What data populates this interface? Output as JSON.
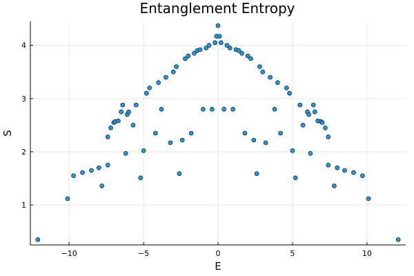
{
  "chart_data": {
    "type": "scatter",
    "title": "Entanglement Entropy",
    "xlabel": "E",
    "ylabel": "S",
    "xlim": [
      -12.6,
      12.6
    ],
    "ylim": [
      0.25,
      4.45
    ],
    "x_ticks": [
      -10,
      -5,
      0,
      5,
      10
    ],
    "x_tick_labels": [
      "−10",
      "−5",
      "0",
      "5",
      "10"
    ],
    "y_ticks": [
      1,
      2,
      3,
      4
    ],
    "y_tick_labels": [
      "1",
      "2",
      "3",
      "4"
    ],
    "grid": true,
    "legend": "none",
    "marker_color": "#1f9ae0",
    "marker_edge_color": "#000000",
    "series": [
      {
        "x": [
          -12.1,
          -10.1,
          -9.7,
          -9.1,
          -8.5,
          -8.0,
          -7.8,
          -7.4,
          -7.4,
          -7.2,
          -7.0,
          -6.9,
          -6.7,
          -6.5,
          -6.4,
          -6.2,
          -6.1,
          -6.0,
          -5.7,
          -5.5,
          -5.2,
          -5.0,
          -4.8,
          -4.6,
          -4.2,
          -4.0,
          -3.8,
          -3.5,
          -3.2,
          -3.0,
          -2.8,
          -2.6,
          -2.4,
          -2.2,
          -2.0,
          -1.8,
          -1.6,
          -1.4,
          -1.2,
          -1.0,
          -0.8,
          -0.6,
          -0.4,
          -0.2,
          -0.1,
          0.0,
          0.1,
          0.2,
          0.4,
          0.6,
          0.8,
          1.0,
          1.2,
          1.4,
          1.6,
          1.8,
          2.0,
          2.2,
          2.4,
          2.6,
          2.8,
          3.0,
          3.2,
          3.5,
          3.8,
          4.0,
          4.2,
          4.6,
          4.8,
          5.0,
          5.2,
          5.5,
          5.7,
          6.0,
          6.1,
          6.2,
          6.4,
          6.5,
          6.7,
          6.9,
          7.0,
          7.2,
          7.4,
          7.4,
          7.8,
          8.0,
          8.5,
          9.1,
          9.7,
          10.1,
          12.1
        ],
        "y": [
          0.35,
          1.12,
          1.55,
          1.61,
          1.65,
          1.7,
          1.36,
          1.75,
          2.28,
          2.45,
          2.55,
          2.57,
          2.58,
          2.75,
          2.88,
          1.97,
          2.7,
          2.75,
          2.5,
          2.88,
          1.51,
          2.02,
          3.1,
          3.2,
          2.35,
          3.3,
          2.8,
          3.4,
          2.17,
          3.5,
          3.6,
          1.59,
          2.22,
          3.75,
          3.8,
          2.35,
          3.85,
          3.9,
          3.92,
          2.8,
          3.95,
          4.0,
          2.8,
          4.05,
          4.17,
          4.37,
          4.17,
          4.05,
          2.8,
          4.0,
          3.95,
          2.8,
          3.92,
          3.9,
          3.85,
          2.35,
          3.8,
          3.75,
          2.22,
          1.59,
          3.6,
          3.5,
          2.17,
          3.4,
          2.8,
          3.3,
          2.35,
          3.2,
          3.1,
          2.02,
          1.51,
          2.88,
          2.5,
          2.75,
          2.7,
          1.97,
          2.88,
          2.75,
          2.58,
          2.57,
          2.55,
          2.45,
          2.28,
          1.75,
          1.36,
          1.7,
          1.65,
          1.61,
          1.55,
          1.12,
          0.35
        ]
      }
    ]
  }
}
